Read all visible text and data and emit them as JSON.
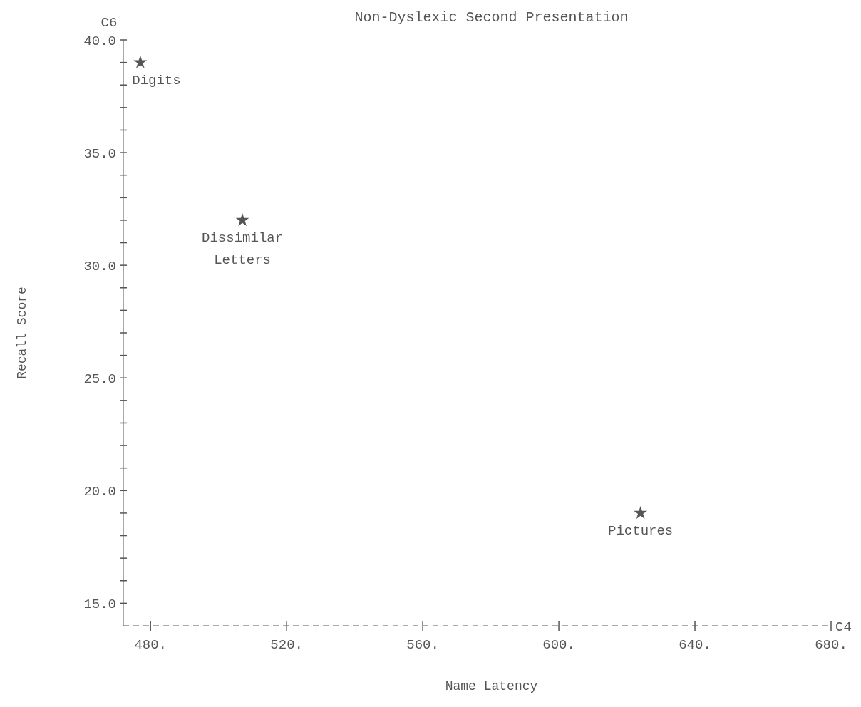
{
  "chart_data": {
    "type": "scatter",
    "title": "Non-Dyslexic Second Presentation",
    "xlabel": "Name Latency",
    "ylabel": "Recall Score",
    "x": [
      477,
      507,
      624
    ],
    "values": [
      39,
      32,
      19
    ],
    "color": "#555555",
    "marker": "star",
    "grid": false,
    "xlim": [
      472,
      680
    ],
    "xticks": [
      {
        "value": 480,
        "label": "480."
      },
      {
        "value": 520,
        "label": "520."
      },
      {
        "value": 560,
        "label": "560."
      },
      {
        "value": 600,
        "label": "600."
      },
      {
        "value": 640,
        "label": "640."
      },
      {
        "value": 680,
        "label": "680."
      }
    ],
    "ylim": [
      14,
      40
    ],
    "yticks": [
      {
        "value": 15,
        "label": "15.0"
      },
      {
        "value": 16,
        "label": null
      },
      {
        "value": 17,
        "label": null
      },
      {
        "value": 18,
        "label": null
      },
      {
        "value": 19,
        "label": null
      },
      {
        "value": 20,
        "label": "20.0"
      },
      {
        "value": 21,
        "label": null
      },
      {
        "value": 22,
        "label": null
      },
      {
        "value": 23,
        "label": null
      },
      {
        "value": 24,
        "label": null
      },
      {
        "value": 25,
        "label": "25.0"
      },
      {
        "value": 26,
        "label": null
      },
      {
        "value": 27,
        "label": null
      },
      {
        "value": 28,
        "label": null
      },
      {
        "value": 29,
        "label": null
      },
      {
        "value": 30,
        "label": "30.0"
      },
      {
        "value": 31,
        "label": null
      },
      {
        "value": 32,
        "label": null
      },
      {
        "value": 33,
        "label": null
      },
      {
        "value": 34,
        "label": null
      },
      {
        "value": 35,
        "label": "35.0"
      },
      {
        "value": 36,
        "label": null
      },
      {
        "value": 37,
        "label": null
      },
      {
        "value": 38,
        "label": null
      },
      {
        "value": 39,
        "label": null
      },
      {
        "value": 40,
        "label": "40.0"
      }
    ],
    "annotations": [
      {
        "text": "Digits",
        "x": 477,
        "y": 39
      },
      {
        "text": "Dissimilar\nLetters",
        "x": 507,
        "y": 32
      },
      {
        "text": "Pictures",
        "x": 624,
        "y": 19
      },
      "C6",
      "C4"
    ]
  }
}
